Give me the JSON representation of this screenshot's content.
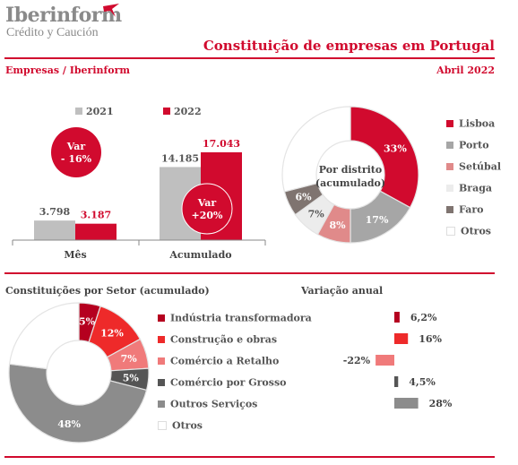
{
  "brand": {
    "name": "Iberinform",
    "subtitle": "Crédito y Caución",
    "accent": "#d10a2e"
  },
  "header": {
    "title": "Constituição de empresas em Portugal",
    "source": "Empresas / Iberinform",
    "date": "Abril 2022"
  },
  "chart_data": [
    {
      "type": "bar",
      "categories": [
        "Mês",
        "Acumulado"
      ],
      "series": [
        {
          "name": "2021",
          "values": [
            3798,
            14185
          ],
          "labels": [
            "3.798",
            "14.185"
          ],
          "color": "#bfbfbf"
        },
        {
          "name": "2022",
          "values": [
            3187,
            17043
          ],
          "labels": [
            "3.187",
            "17.043"
          ],
          "color": "#d10a2e"
        }
      ],
      "annotations": [
        {
          "category": "Mês",
          "text_line1": "Var",
          "text_line2": "- 16%"
        },
        {
          "category": "Acumulado",
          "text_line1": "Var",
          "text_line2": "+20%"
        }
      ],
      "ylim": [
        0,
        20000
      ]
    },
    {
      "type": "pie",
      "center_label_line1": "Por distrito",
      "center_label_line2": "(acumulado)",
      "slices": [
        {
          "label": "Lisboa",
          "value": 33,
          "text": "33%",
          "color": "#d10a2e"
        },
        {
          "label": "Porto",
          "value": 17,
          "text": "17%",
          "color": "#a6a6a6"
        },
        {
          "label": "Setúbal",
          "value": 8,
          "text": "8%",
          "color": "#e08a8a"
        },
        {
          "label": "Braga",
          "value": 7,
          "text": "7%",
          "color": "#ececec"
        },
        {
          "label": "Faro",
          "value": 6,
          "text": "6%",
          "color": "#7f7470"
        },
        {
          "label": "Otros",
          "value": 29,
          "text": "",
          "color": "#ffffff"
        }
      ],
      "legend_position": "right"
    },
    {
      "type": "pie",
      "title": "Constituições por Setor (acumulado)",
      "slices": [
        {
          "label": "Indústria transformadora",
          "value": 5,
          "text": "5%",
          "color": "#b5001f"
        },
        {
          "label": "Construção e obras",
          "value": 12,
          "text": "12%",
          "color": "#ee2a2a"
        },
        {
          "label": "Comércio a Retalho",
          "value": 7,
          "text": "7%",
          "color": "#f07a7a"
        },
        {
          "label": "Comércio por Grosso",
          "value": 5,
          "text": "5%",
          "color": "#555555"
        },
        {
          "label": "Outros Serviços",
          "value": 48,
          "text": "48%",
          "color": "#8c8c8c"
        },
        {
          "label": "Otros",
          "value": 23,
          "text": "",
          "color": "#ffffff"
        }
      ],
      "legend_position": "right"
    },
    {
      "type": "bar",
      "title": "Variação anual",
      "orientation": "horizontal",
      "categories": [
        "Indústria transformadora",
        "Construção e obras",
        "Comércio a Retalho",
        "Comércio por Grosso",
        "Outros Serviços"
      ],
      "values": [
        6.2,
        16,
        -22,
        4.5,
        28
      ],
      "labels": [
        "6,2%",
        "16%",
        "-22%",
        "4,5%",
        "28%"
      ],
      "colors": [
        "#b5001f",
        "#ee2a2a",
        "#f07a7a",
        "#555555",
        "#8c8c8c"
      ]
    }
  ]
}
